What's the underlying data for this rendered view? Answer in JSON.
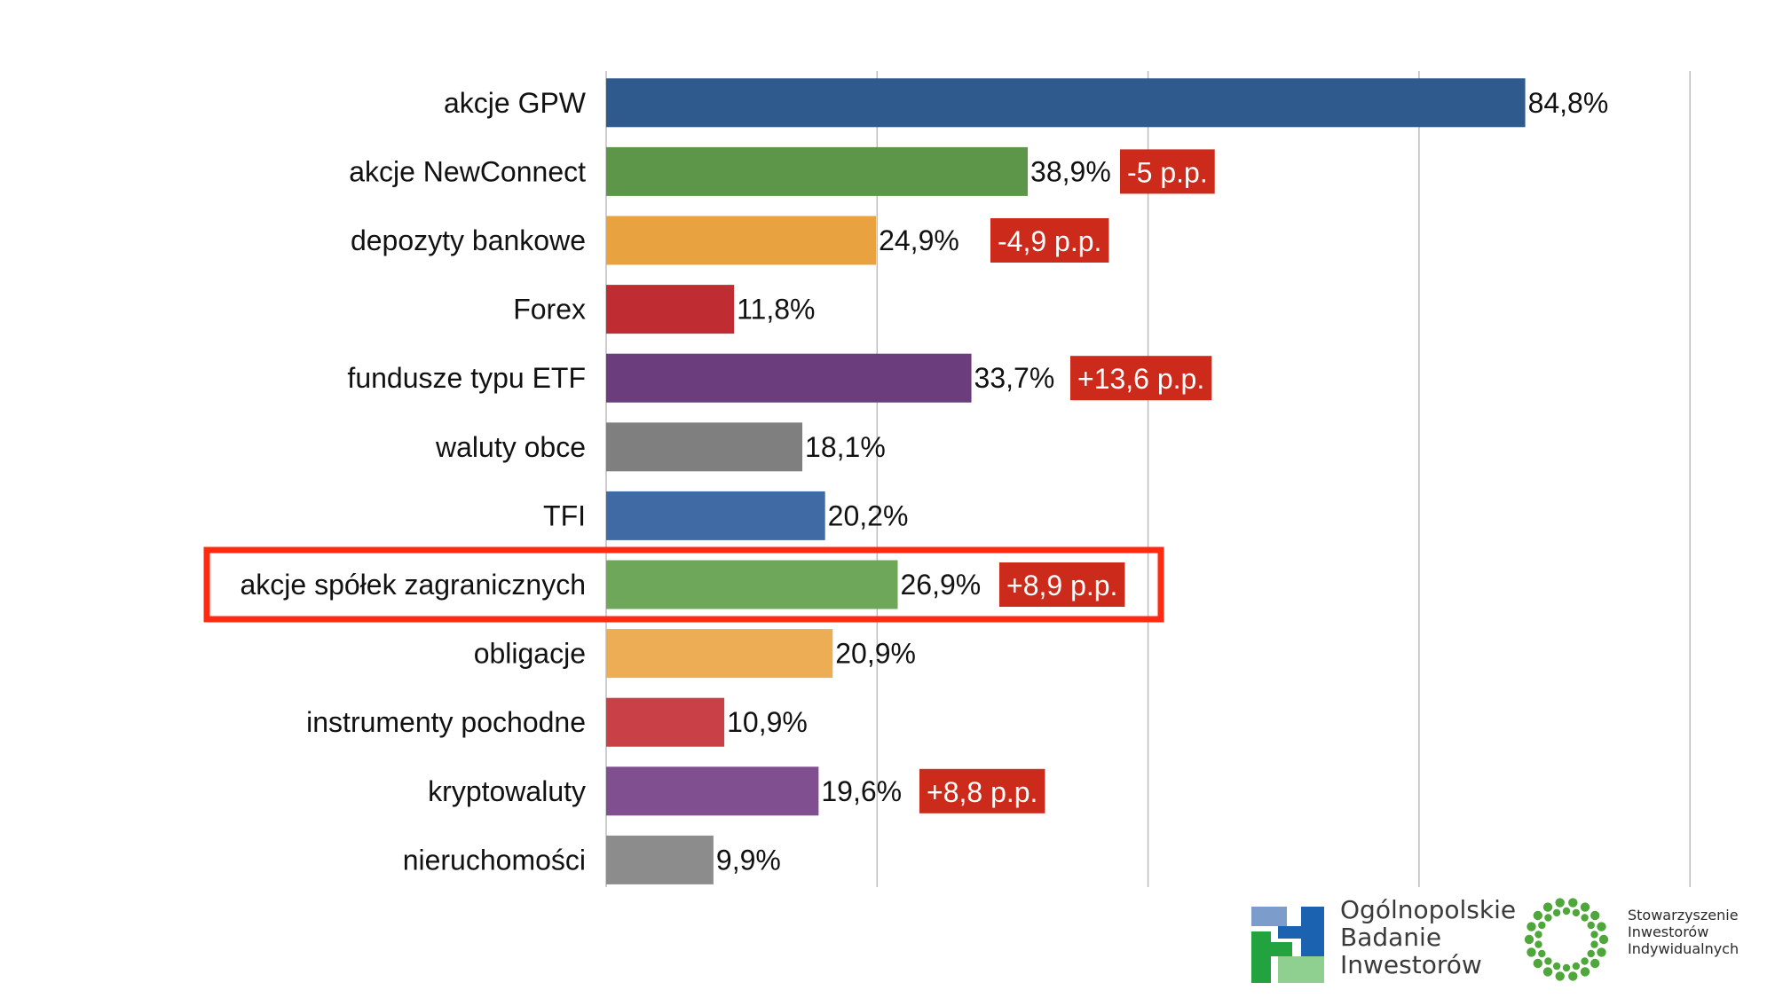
{
  "chart_data": {
    "type": "bar",
    "orientation": "horizontal",
    "title": "",
    "xlabel": "",
    "ylabel": "",
    "xlim": [
      0,
      100
    ],
    "grid": "vertical",
    "categories": [
      "akcje GPW",
      "akcje NewConnect",
      "depozyty bankowe",
      "Forex",
      "fundusze typu ETF",
      "waluty obce",
      "TFI",
      "akcje spółek zagranicznych",
      "obligacje",
      "instrumenty pochodne",
      "kryptowaluty",
      "nieruchomości"
    ],
    "values": [
      84.8,
      38.9,
      24.9,
      11.8,
      33.7,
      18.1,
      20.2,
      26.9,
      20.9,
      10.9,
      19.6,
      9.9
    ],
    "value_labels": [
      "84,8%",
      "38,9%",
      "24,9%",
      "11,8%",
      "33,7%",
      "18,1%",
      "20,2%",
      "26,9%",
      "20,9%",
      "10,9%",
      "19,6%",
      "9,9%"
    ],
    "colors": [
      "#2e5a8e",
      "#5d9649",
      "#e8a23f",
      "#bf2c31",
      "#6b3d7c",
      "#7f7f7f",
      "#3f6aa3",
      "#6ea65a",
      "#edad55",
      "#c94046",
      "#7f4f90",
      "#8c8c8c"
    ],
    "annotations": [
      {
        "category": "akcje NewConnect",
        "text": "-5 p.p."
      },
      {
        "category": "depozyty bankowe",
        "text": "-4,9 p.p."
      },
      {
        "category": "fundusze typu ETF",
        "text": "+13,6 p.p."
      },
      {
        "category": "akcje spółek zagranicznych",
        "text": "+8,9 p.p."
      },
      {
        "category": "kryptowaluty",
        "text": "+8,8 p.p."
      }
    ],
    "badge_color": "#cc2a1a",
    "highlight": {
      "category": "akcje spółek zagranicznych",
      "color": "#ff2a12"
    }
  },
  "logos": {
    "obi": {
      "lines": [
        "Ogólnopolskie",
        "Badanie",
        "Inwestorów"
      ],
      "colors": [
        "#7c9ccb",
        "#1b63b1",
        "#22a33f",
        "#8fcf8f"
      ]
    },
    "sii": {
      "lines": [
        "Stowarzyszenie",
        "Inwestorów",
        "Indywidualnych"
      ],
      "color": "#4fa63a"
    }
  }
}
